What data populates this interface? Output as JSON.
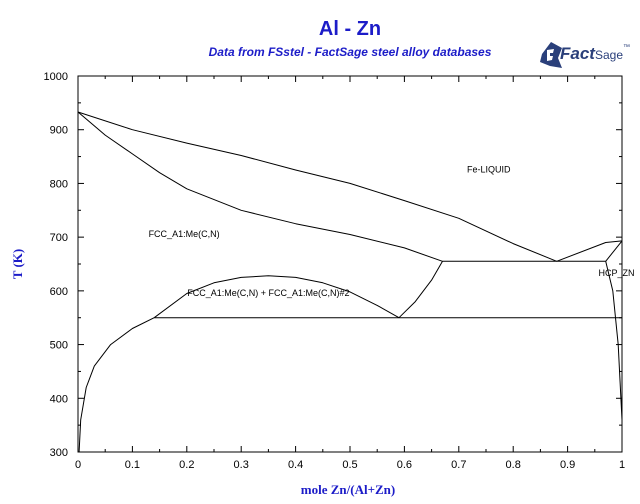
{
  "header": {
    "title": "Al - Zn",
    "subtitle": "Data from FSstel - FactSage steel alloy databases",
    "logo_text": "Fact",
    "logo_text_suffix": "Sage",
    "logo_mark": "™"
  },
  "colors": {
    "title": "#1c1cc8",
    "axis_label": "#1c1cc8",
    "line": "#000000",
    "logo": "#2a3f7a"
  },
  "chart_data": {
    "type": "line",
    "title": "Al - Zn",
    "subtitle": "Data from FSstel - FactSage steel alloy databases",
    "xlabel": "mole Zn/(Al+Zn)",
    "ylabel": "T (K)",
    "xlim": [
      0,
      1
    ],
    "ylim": [
      300,
      1000
    ],
    "xticks": [
      0,
      0.1,
      0.2,
      0.3,
      0.4,
      0.5,
      0.6,
      0.7,
      0.8,
      0.9,
      1
    ],
    "xtick_labels": [
      "0",
      "0.1",
      "0.2",
      "0.3",
      "0.4",
      "0.5",
      "0.6",
      "0.7",
      "0.8",
      "0.9",
      "1"
    ],
    "yticks": [
      300,
      400,
      500,
      600,
      700,
      800,
      900,
      1000
    ],
    "ytick_labels": [
      "300",
      "400",
      "500",
      "600",
      "700",
      "800",
      "900",
      "1000"
    ],
    "grid": false,
    "series": [
      {
        "points": [
          [
            0,
            933
          ],
          [
            0.1,
            900
          ],
          [
            0.2,
            875
          ],
          [
            0.3,
            852
          ],
          [
            0.4,
            825
          ],
          [
            0.5,
            800
          ],
          [
            0.6,
            768
          ],
          [
            0.7,
            735
          ],
          [
            0.8,
            688
          ],
          [
            0.88,
            655
          ]
        ]
      },
      {
        "points": [
          [
            0,
            933
          ],
          [
            0.05,
            890
          ],
          [
            0.1,
            855
          ],
          [
            0.15,
            820
          ],
          [
            0.2,
            790
          ],
          [
            0.3,
            750
          ],
          [
            0.4,
            725
          ],
          [
            0.5,
            705
          ],
          [
            0.6,
            680
          ],
          [
            0.67,
            655
          ]
        ]
      },
      {
        "points": [
          [
            0.88,
            655
          ],
          [
            0.97,
            690
          ],
          [
            1,
            693
          ]
        ]
      },
      {
        "points": [
          [
            0.67,
            655
          ],
          [
            0.97,
            655
          ]
        ]
      },
      {
        "points": [
          [
            0.97,
            655
          ],
          [
            1,
            693
          ]
        ]
      },
      {
        "points": [
          [
            0.97,
            655
          ],
          [
            0.983,
            600
          ],
          [
            0.993,
            500
          ],
          [
            0.998,
            400
          ],
          [
            1,
            360
          ]
        ]
      },
      {
        "points": [
          [
            0.14,
            550
          ],
          [
            1,
            550
          ]
        ]
      },
      {
        "points": [
          [
            0.59,
            550
          ],
          [
            0.62,
            580
          ],
          [
            0.65,
            620
          ],
          [
            0.67,
            655
          ]
        ]
      },
      {
        "points": [
          [
            0.14,
            550
          ],
          [
            0.2,
            595
          ],
          [
            0.25,
            615
          ],
          [
            0.3,
            625
          ],
          [
            0.35,
            628
          ],
          [
            0.4,
            625
          ],
          [
            0.45,
            615
          ],
          [
            0.5,
            598
          ],
          [
            0.55,
            573
          ],
          [
            0.59,
            550
          ]
        ]
      },
      {
        "points": [
          [
            0.14,
            550
          ],
          [
            0.1,
            530
          ],
          [
            0.06,
            500
          ],
          [
            0.03,
            460
          ],
          [
            0.015,
            420
          ],
          [
            0.005,
            360
          ],
          [
            0.002,
            300
          ]
        ]
      }
    ],
    "annotations": [
      {
        "text": "Fe-LIQUID",
        "x": 0.755,
        "y": 820
      },
      {
        "text": "FCC_A1:Me(C,N)",
        "x": 0.195,
        "y": 700
      },
      {
        "text": "FCC_A1:Me(C,N) + FCC_A1:Me(C,N)#2",
        "x": 0.35,
        "y": 590
      },
      {
        "text": "HCP_ZN",
        "x": 0.99,
        "y": 628
      }
    ]
  }
}
